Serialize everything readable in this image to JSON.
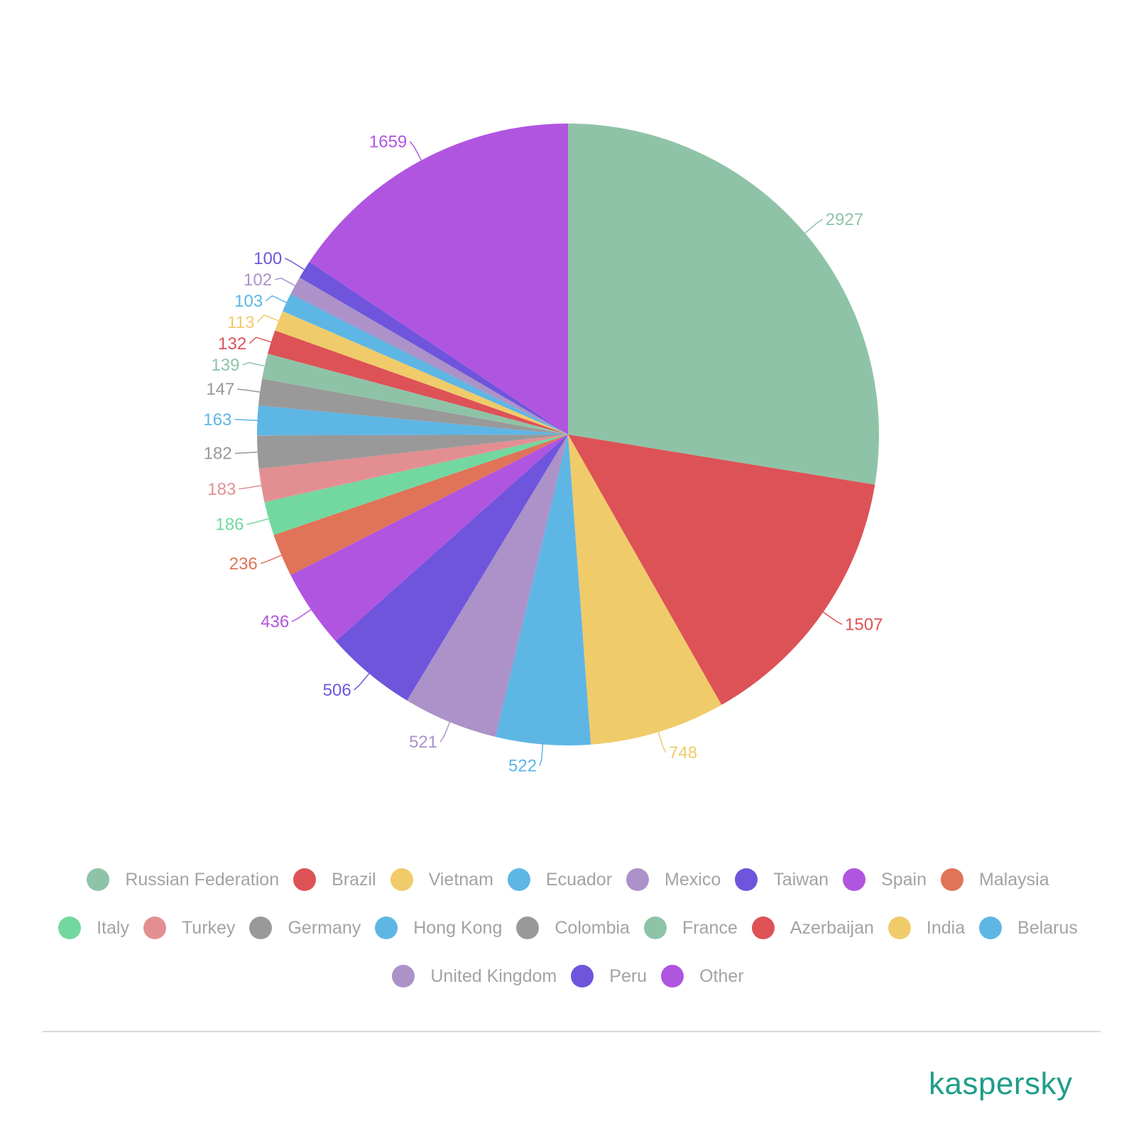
{
  "chart_data": {
    "type": "pie",
    "title": "",
    "categories": [
      "Russian Federation",
      "Brazil",
      "Vietnam",
      "Ecuador",
      "Mexico",
      "Taiwan",
      "Spain",
      "Malaysia",
      "Italy",
      "Turkey",
      "Germany",
      "Hong Kong",
      "Colombia",
      "France",
      "Azerbaijan",
      "India",
      "Belarus",
      "United Kingdom",
      "Peru",
      "Other"
    ],
    "values": [
      2927,
      1507,
      748,
      522,
      521,
      506,
      436,
      236,
      186,
      183,
      182,
      163,
      147,
      139,
      132,
      113,
      103,
      102,
      100,
      1659
    ],
    "value_labels": [
      "2927",
      "1507",
      "748",
      "522",
      "521",
      "506",
      "436",
      "236",
      "186",
      "183",
      "182",
      "163",
      "147",
      "139",
      "132",
      "113",
      "103",
      "102",
      "100",
      "1659"
    ],
    "colors": [
      "#8fc3a7",
      "#dd5256",
      "#f0cb6a",
      "#5eb6e5",
      "#ac92c8",
      "#6e55dc",
      "#b055e0",
      "#e07358",
      "#72d8a0",
      "#e38f92",
      "#999999",
      "#5eb6e5",
      "#999999",
      "#8fc3a7",
      "#dd5256",
      "#f0cb6a",
      "#5eb6e5",
      "#ac92c8",
      "#6e55dc",
      "#b055e0"
    ],
    "legend_position": "bottom",
    "start_angle": "12 o'clock, clockwise"
  },
  "logo": {
    "text": "kaspersky"
  }
}
